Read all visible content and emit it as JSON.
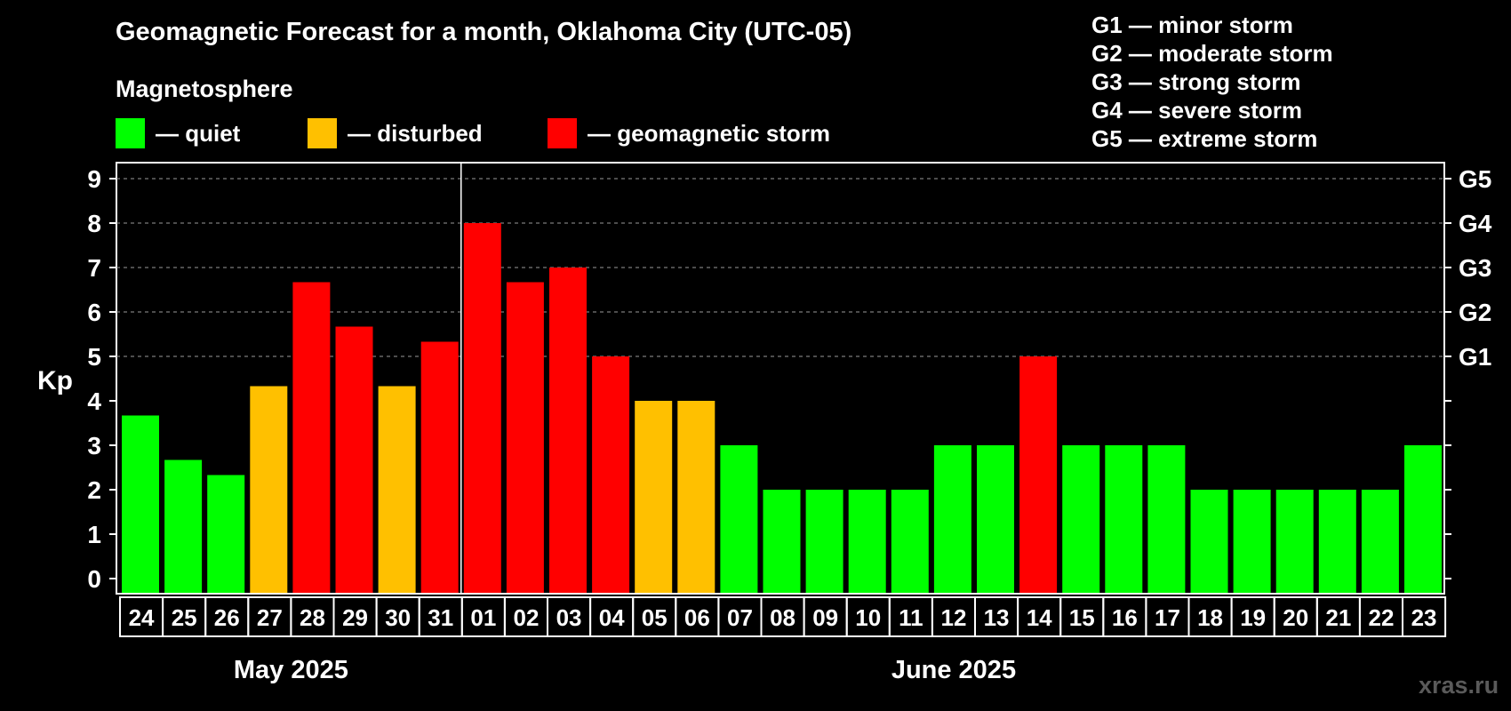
{
  "chart_data": {
    "type": "bar",
    "title": "Geomagnetic Forecast for a month, Oklahoma City (UTC-05)",
    "subtitle": "Magnetosphere",
    "ylabel": "Kp",
    "ylim": [
      0,
      9
    ],
    "yticks": [
      "0",
      "1",
      "2",
      "3",
      "4",
      "5",
      "6",
      "7",
      "8",
      "9"
    ],
    "right_axis_labels": [
      {
        "kp": 5,
        "label": "G1"
      },
      {
        "kp": 6,
        "label": "G2"
      },
      {
        "kp": 7,
        "label": "G3"
      },
      {
        "kp": 8,
        "label": "G4"
      },
      {
        "kp": 9,
        "label": "G5"
      }
    ],
    "categories": [
      "24",
      "25",
      "26",
      "27",
      "28",
      "29",
      "30",
      "31",
      "01",
      "02",
      "03",
      "04",
      "05",
      "06",
      "07",
      "08",
      "09",
      "10",
      "11",
      "12",
      "13",
      "14",
      "15",
      "16",
      "17",
      "18",
      "19",
      "20",
      "21",
      "22",
      "23"
    ],
    "values": [
      3.67,
      2.67,
      2.33,
      4.33,
      6.67,
      5.67,
      4.33,
      5.33,
      8,
      6.67,
      7,
      5,
      4,
      4,
      3,
      2,
      2,
      2,
      2,
      3,
      3,
      5,
      3,
      3,
      3,
      2,
      2,
      2,
      2,
      2,
      3
    ],
    "status": [
      "quiet",
      "quiet",
      "quiet",
      "disturbed",
      "storm",
      "storm",
      "disturbed",
      "storm",
      "storm",
      "storm",
      "storm",
      "storm",
      "disturbed",
      "disturbed",
      "quiet",
      "quiet",
      "quiet",
      "quiet",
      "quiet",
      "quiet",
      "quiet",
      "storm",
      "quiet",
      "quiet",
      "quiet",
      "quiet",
      "quiet",
      "quiet",
      "quiet",
      "quiet",
      "quiet"
    ],
    "months": [
      {
        "label": "May 2025",
        "first_index": 0,
        "last_index": 7
      },
      {
        "label": "June 2025",
        "first_index": 8,
        "last_index": 30
      }
    ],
    "grid_dashed_at_kp": [
      5,
      6,
      7,
      8,
      9
    ]
  },
  "legend": {
    "items": [
      {
        "label": "— quiet",
        "color": "#00ff00"
      },
      {
        "label": "— disturbed",
        "color": "#ffc000"
      },
      {
        "label": "— geomagnetic storm",
        "color": "#ff0000"
      }
    ],
    "g_scale": [
      "G1 — minor storm",
      "G2 — moderate storm",
      "G3 — strong storm",
      "G4 — severe storm",
      "G5 — extreme storm"
    ]
  },
  "colors": {
    "quiet": "#00ff00",
    "disturbed": "#ffc000",
    "storm": "#ff0000"
  },
  "watermark": "xras.ru"
}
